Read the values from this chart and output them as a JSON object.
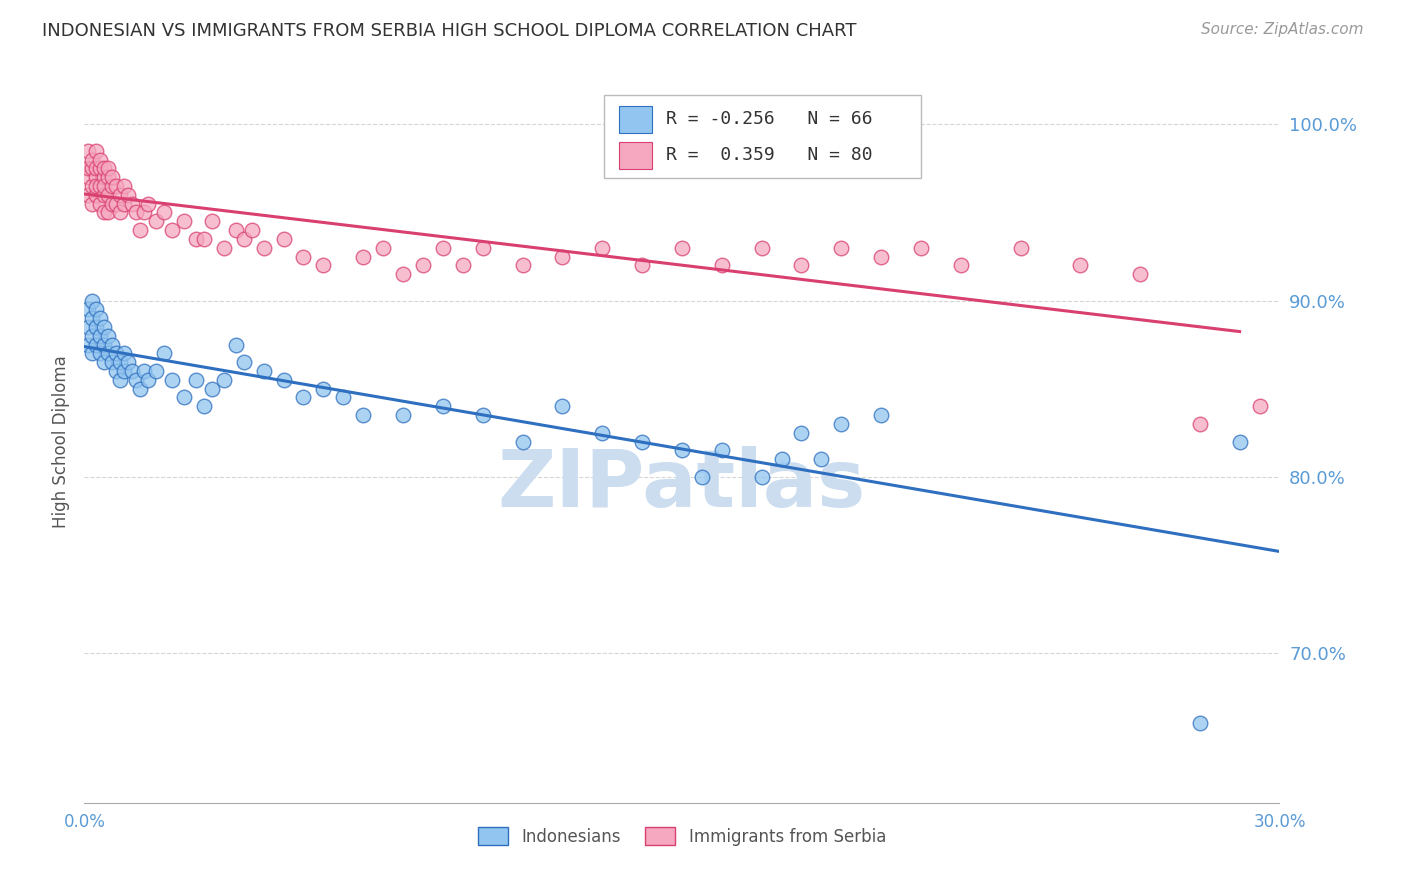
{
  "title": "INDONESIAN VS IMMIGRANTS FROM SERBIA HIGH SCHOOL DIPLOMA CORRELATION CHART",
  "source": "Source: ZipAtlas.com",
  "ylabel": "High School Diploma",
  "ytick_labels": [
    "100.0%",
    "90.0%",
    "80.0%",
    "70.0%"
  ],
  "ytick_values": [
    1.0,
    0.9,
    0.8,
    0.7
  ],
  "xlim": [
    0.0,
    0.3
  ],
  "ylim": [
    0.615,
    1.025
  ],
  "color_blue": "#92C5F0",
  "color_pink": "#F5A8C0",
  "color_blue_line": "#2E6FBF",
  "color_pink_line": "#D94070",
  "color_axis": "#5B9BD5",
  "watermark_color": "#CCDDF0",
  "ind_x": [
    0.001,
    0.001,
    0.001,
    0.002,
    0.002,
    0.002,
    0.002,
    0.003,
    0.003,
    0.003,
    0.004,
    0.004,
    0.004,
    0.005,
    0.005,
    0.005,
    0.006,
    0.006,
    0.007,
    0.007,
    0.008,
    0.008,
    0.009,
    0.009,
    0.01,
    0.01,
    0.011,
    0.012,
    0.013,
    0.014,
    0.015,
    0.016,
    0.018,
    0.02,
    0.022,
    0.025,
    0.028,
    0.03,
    0.032,
    0.035,
    0.038,
    0.04,
    0.045,
    0.05,
    0.055,
    0.06,
    0.065,
    0.07,
    0.08,
    0.09,
    0.1,
    0.11,
    0.12,
    0.13,
    0.14,
    0.15,
    0.155,
    0.16,
    0.17,
    0.175,
    0.18,
    0.185,
    0.19,
    0.2,
    0.28,
    0.29
  ],
  "ind_y": [
    0.895,
    0.885,
    0.875,
    0.9,
    0.89,
    0.88,
    0.87,
    0.895,
    0.885,
    0.875,
    0.89,
    0.88,
    0.87,
    0.885,
    0.875,
    0.865,
    0.88,
    0.87,
    0.875,
    0.865,
    0.87,
    0.86,
    0.865,
    0.855,
    0.87,
    0.86,
    0.865,
    0.86,
    0.855,
    0.85,
    0.86,
    0.855,
    0.86,
    0.87,
    0.855,
    0.845,
    0.855,
    0.84,
    0.85,
    0.855,
    0.875,
    0.865,
    0.86,
    0.855,
    0.845,
    0.85,
    0.845,
    0.835,
    0.835,
    0.84,
    0.835,
    0.82,
    0.84,
    0.825,
    0.82,
    0.815,
    0.8,
    0.815,
    0.8,
    0.81,
    0.825,
    0.81,
    0.83,
    0.835,
    0.66,
    0.82
  ],
  "ser_x": [
    0.001,
    0.001,
    0.001,
    0.001,
    0.002,
    0.002,
    0.002,
    0.002,
    0.003,
    0.003,
    0.003,
    0.003,
    0.003,
    0.004,
    0.004,
    0.004,
    0.004,
    0.005,
    0.005,
    0.005,
    0.005,
    0.005,
    0.006,
    0.006,
    0.006,
    0.006,
    0.007,
    0.007,
    0.007,
    0.008,
    0.008,
    0.009,
    0.009,
    0.01,
    0.01,
    0.011,
    0.012,
    0.013,
    0.014,
    0.015,
    0.016,
    0.018,
    0.02,
    0.022,
    0.025,
    0.028,
    0.03,
    0.032,
    0.035,
    0.038,
    0.04,
    0.042,
    0.045,
    0.05,
    0.055,
    0.06,
    0.07,
    0.075,
    0.08,
    0.085,
    0.09,
    0.095,
    0.1,
    0.11,
    0.12,
    0.13,
    0.14,
    0.15,
    0.16,
    0.17,
    0.18,
    0.19,
    0.2,
    0.21,
    0.22,
    0.235,
    0.25,
    0.265,
    0.28,
    0.295
  ],
  "ser_y": [
    0.97,
    0.96,
    0.985,
    0.975,
    0.975,
    0.965,
    0.955,
    0.98,
    0.97,
    0.96,
    0.985,
    0.975,
    0.965,
    0.975,
    0.965,
    0.955,
    0.98,
    0.97,
    0.96,
    0.95,
    0.975,
    0.965,
    0.97,
    0.96,
    0.95,
    0.975,
    0.965,
    0.955,
    0.97,
    0.965,
    0.955,
    0.96,
    0.95,
    0.965,
    0.955,
    0.96,
    0.955,
    0.95,
    0.94,
    0.95,
    0.955,
    0.945,
    0.95,
    0.94,
    0.945,
    0.935,
    0.935,
    0.945,
    0.93,
    0.94,
    0.935,
    0.94,
    0.93,
    0.935,
    0.925,
    0.92,
    0.925,
    0.93,
    0.915,
    0.92,
    0.93,
    0.92,
    0.93,
    0.92,
    0.925,
    0.93,
    0.92,
    0.93,
    0.92,
    0.93,
    0.92,
    0.93,
    0.925,
    0.93,
    0.92,
    0.93,
    0.92,
    0.915,
    0.83,
    0.84
  ]
}
